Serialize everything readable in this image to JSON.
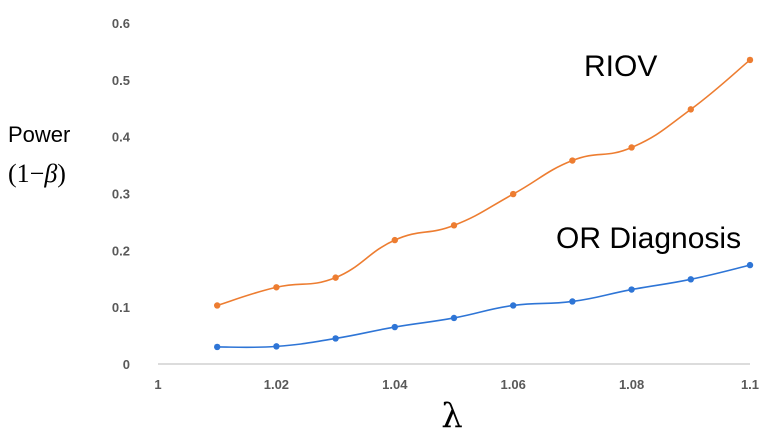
{
  "chart_data": {
    "type": "line",
    "ylabel_line1": "Power",
    "ylabel_line2_prefix": "(1−",
    "ylabel_line2_symbol": "β",
    "ylabel_line2_suffix": ")",
    "xlabel": "λ",
    "xlim": [
      1,
      1.1
    ],
    "ylim": [
      0,
      0.6
    ],
    "xticks": [
      "1",
      "1.02",
      "1.04",
      "1.06",
      "1.08",
      "1.1"
    ],
    "yticks": [
      "0",
      "0.1",
      "0.2",
      "0.3",
      "0.4",
      "0.5",
      "0.6"
    ],
    "grid": false,
    "x": [
      1.01,
      1.02,
      1.03,
      1.04,
      1.05,
      1.06,
      1.07,
      1.08,
      1.09,
      1.1
    ],
    "series": [
      {
        "name": "RIOV",
        "color": "#ED7D31",
        "values": [
          0.103,
          0.135,
          0.152,
          0.218,
          0.244,
          0.299,
          0.358,
          0.381,
          0.448,
          0.535
        ]
      },
      {
        "name": "OR Diagnosis",
        "color": "#2E75D6",
        "values": [
          0.03,
          0.031,
          0.045,
          0.065,
          0.081,
          0.103,
          0.11,
          0.131,
          0.149,
          0.174
        ]
      }
    ]
  }
}
